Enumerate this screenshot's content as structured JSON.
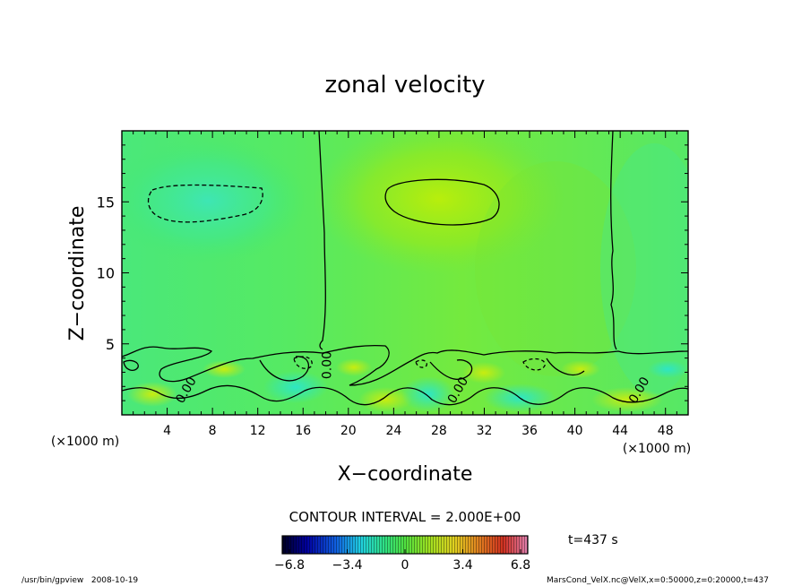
{
  "chart_data": {
    "type": "heatmap",
    "title": "zonal velocity",
    "xlabel": "X−coordinate",
    "ylabel": "Z−coordinate",
    "x_unit": "(×1000 m)",
    "y_unit": "(×1000 m)",
    "xlim": [
      0,
      50
    ],
    "ylim": [
      0,
      20
    ],
    "x_ticks": [
      4,
      8,
      12,
      16,
      20,
      24,
      28,
      32,
      36,
      40,
      44,
      48
    ],
    "y_ticks": [
      5,
      10,
      15
    ],
    "contour_labels": [
      {
        "text": "0.00",
        "x": 18,
        "z": 3.5
      },
      {
        "text": "0.00",
        "x": 5.5,
        "z": 1.6
      },
      {
        "text": "0.00",
        "x": 29.5,
        "z": 1.6
      },
      {
        "text": "0.00",
        "x": 45.5,
        "z": 1.6
      }
    ],
    "contour_interval_text": "CONTOUR INTERVAL = 2.000E+00",
    "colorbar": {
      "min": -6.8,
      "max": 6.8,
      "ticks": [
        "−6.8",
        "−3.4",
        "0",
        "3.4",
        "6.8"
      ]
    },
    "time_text": "t=437 s",
    "grid": false,
    "legend": "colorbar-bottom"
  },
  "footer": {
    "left": "/usr/bin/gpview   2008-10-19",
    "right": "MarsCond_VelX.nc@VelX,x=0:50000,z=0:20000,t=437"
  }
}
